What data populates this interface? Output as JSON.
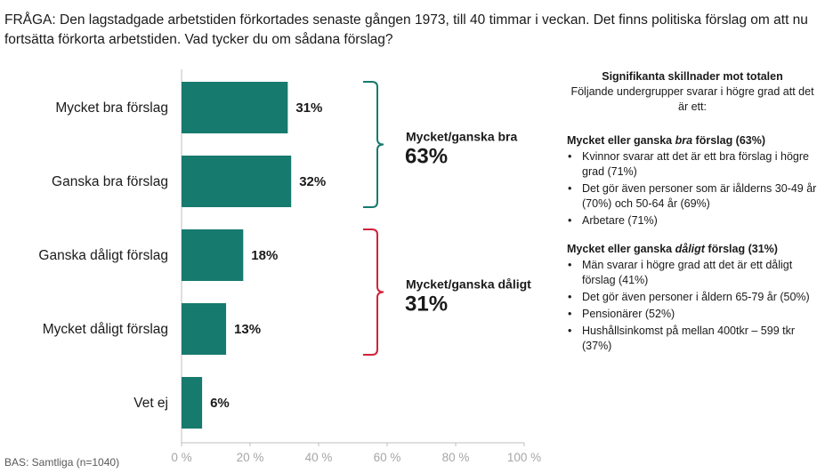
{
  "question": "FRÅGA: Den lagstadgade arbetstiden förkortades senaste gången 1973, till 40 timmar i veckan. Det finns politiska förslag om att nu fortsätta förkorta arbetstiden. Vad tycker du om sådana förslag?",
  "base_note": "BAS: Samtliga (n=1040)",
  "colors": {
    "bar": "#177a6e",
    "positive_bracket": "#177a6e",
    "negative_bracket": "#d0223c",
    "axis": "#bfbfbf"
  },
  "chart_data": {
    "type": "bar",
    "orientation": "horizontal",
    "categories": [
      "Mycket bra förslag",
      "Ganska bra förslag",
      "Ganska dåligt förslag",
      "Mycket dåligt förslag",
      "Vet ej"
    ],
    "values": [
      31,
      32,
      18,
      13,
      6
    ],
    "value_labels": [
      "31%",
      "32%",
      "18%",
      "13%",
      "6%"
    ],
    "xlim": [
      0,
      100
    ],
    "x_ticks": [
      0,
      20,
      40,
      60,
      80,
      100
    ],
    "x_tick_labels": [
      "0 %",
      "20 %",
      "40 %",
      "60 %",
      "80 %",
      "100 %"
    ],
    "grid": false,
    "groups": [
      {
        "label": "Mycket/ganska bra",
        "value": "63%",
        "categories": [
          0,
          1
        ]
      },
      {
        "label": "Mycket/ganska dåligt",
        "value": "31%",
        "categories": [
          2,
          3
        ]
      }
    ]
  },
  "side_panel": {
    "heading": "Signifikanta skillnader mot totalen",
    "subheading": "Följande undergrupper svarar i högre grad att det är ett:",
    "sections": [
      {
        "title_pre": "Mycket eller ganska ",
        "title_em": "bra",
        "title_post": " förslag (63%)",
        "items": [
          "Kvinnor svarar att det är ett bra förslag i högre grad (71%)",
          "Det gör även personer som är iålderns 30-49 år (70%) och 50-64 år (69%)",
          "Arbetare (71%)"
        ]
      },
      {
        "title_pre": "Mycket eller ganska ",
        "title_em": "dåligt",
        "title_post": " förslag (31%)",
        "items": [
          "Män svarar i högre grad att det är ett dåligt förslag (41%)",
          "Det gör även personer i åldern 65-79 år (50%)",
          "Pensionärer (52%)",
          "Hushållsinkomst på mellan 400tkr – 599 tkr (37%)"
        ]
      }
    ]
  }
}
